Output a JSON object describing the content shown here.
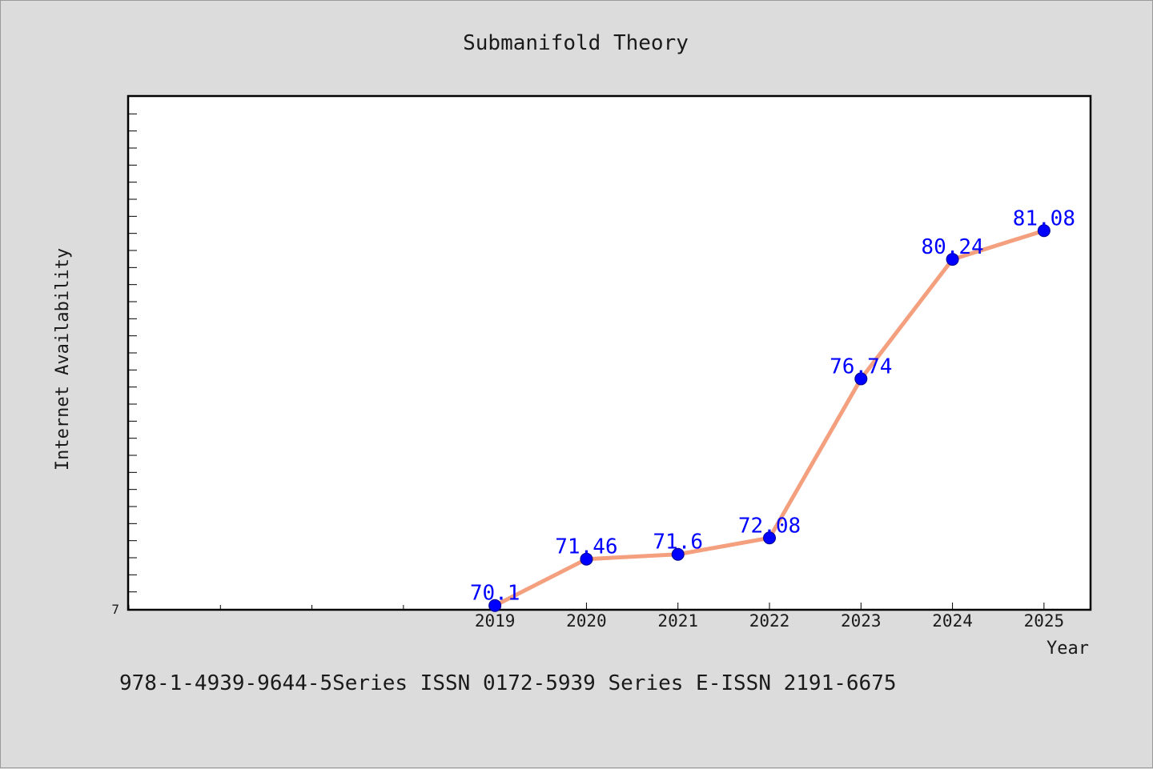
{
  "chart_data": {
    "type": "line",
    "title": "Submanifold Theory",
    "xlabel": "Year",
    "ylabel": "Internet Availability",
    "categories": [
      "2019",
      "2020",
      "2021",
      "2022",
      "2023",
      "2024",
      "2025"
    ],
    "series": [
      {
        "values": [
          70.1,
          71.46,
          71.6,
          72.08,
          76.74,
          80.24,
          81.08
        ],
        "data_labels": [
          "70.1",
          "71.46",
          "71.6",
          "72.08",
          "76.74",
          "80.24",
          "81.08"
        ],
        "line_color": "#f4a07f",
        "marker_color": "#0000ff"
      }
    ],
    "ylim": [
      70,
      85
    ],
    "y_tick_labels": [
      "7"
    ],
    "xlim": [
      2015,
      2025.5
    ],
    "grid": false,
    "legend": "none"
  },
  "footer_text": "978-1-4939-9644-5Series ISSN 0172-5939 Series E-ISSN 2191-6675",
  "colors": {
    "background": "#dcdcdc",
    "plot_background": "#ffffff",
    "line": "#f4a07f",
    "marker": "#0000ff",
    "data_label": "#0000ff"
  }
}
